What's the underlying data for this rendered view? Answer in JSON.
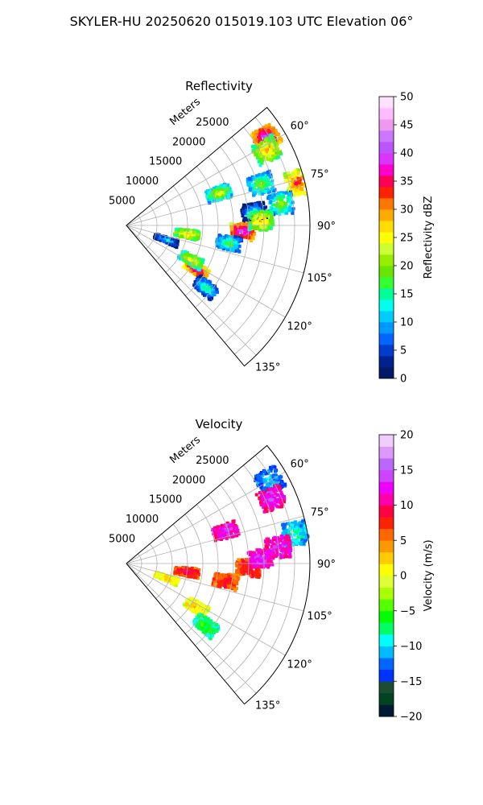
{
  "title": "SKYLER-HU  20250620  015019.103 UTC Elevation 06°",
  "chart_data": [
    {
      "type": "polar-sector",
      "title": "Reflectivity",
      "radial_label": "Meters",
      "radial_ticks": [
        5000,
        10000,
        15000,
        20000,
        25000
      ],
      "radial_max": 30000,
      "azimuth_range_deg": [
        50,
        140
      ],
      "azimuth_tick_labels": [
        "60°",
        "75°",
        "90°",
        "105°",
        "120°",
        "135°"
      ],
      "grid": true,
      "colorbar": {
        "label": "Reflectivity dBZ",
        "min": 0,
        "max": 50,
        "ticks": [
          "0",
          "5",
          "10",
          "15",
          "20",
          "25",
          "30",
          "35",
          "40",
          "45",
          "50"
        ],
        "colors": [
          "#001a66",
          "#00228f",
          "#003dcc",
          "#0066ff",
          "#0099ff",
          "#00ccff",
          "#00ffee",
          "#00ff99",
          "#33ff33",
          "#66e600",
          "#99ee00",
          "#ccff33",
          "#ffff00",
          "#ffdd00",
          "#ffaa00",
          "#ff7700",
          "#ff2200",
          "#ff0055",
          "#ff00cc",
          "#dd33ff",
          "#bb55ff",
          "#cc77ff",
          "#ee99ee",
          "#ffbbff",
          "#ffe0ff"
        ]
      },
      "echoes": [
        {
          "az": 58,
          "range_m": 27000,
          "dbz": 42
        },
        {
          "az": 62,
          "range_m": 26000,
          "dbz": 30
        },
        {
          "az": 71,
          "range_m": 16000,
          "dbz": 25
        },
        {
          "az": 73,
          "range_m": 23000,
          "dbz": 22
        },
        {
          "az": 76,
          "range_m": 29000,
          "dbz": 35
        },
        {
          "az": 82,
          "range_m": 25500,
          "dbz": 22
        },
        {
          "az": 84,
          "range_m": 21000,
          "dbz": 15
        },
        {
          "az": 93,
          "range_m": 19000,
          "dbz": 42
        },
        {
          "az": 88,
          "range_m": 22000,
          "dbz": 30
        },
        {
          "az": 100,
          "range_m": 17000,
          "dbz": 20
        },
        {
          "az": 98,
          "range_m": 10000,
          "dbz": 30
        },
        {
          "az": 110,
          "range_m": 7000,
          "dbz": 15
        },
        {
          "az": 122,
          "range_m": 13500,
          "dbz": 40
        },
        {
          "az": 118,
          "range_m": 12000,
          "dbz": 28
        },
        {
          "az": 128,
          "range_m": 16500,
          "dbz": 18
        }
      ]
    },
    {
      "type": "polar-sector",
      "title": "Velocity",
      "radial_label": "Meters",
      "radial_ticks": [
        5000,
        10000,
        15000,
        20000,
        25000
      ],
      "radial_max": 30000,
      "azimuth_range_deg": [
        50,
        140
      ],
      "azimuth_tick_labels": [
        "60°",
        "75°",
        "90°",
        "105°",
        "120°",
        "135°"
      ],
      "grid": true,
      "colorbar": {
        "label": "Velocity (m/s)",
        "min": -20,
        "max": 20,
        "ticks": [
          "−20",
          "−15",
          "−10",
          "−5",
          "0",
          "5",
          "10",
          "15",
          "20"
        ],
        "colors": [
          "#001a33",
          "#004422",
          "#1a4d33",
          "#0033ff",
          "#0066ff",
          "#00bbff",
          "#00ffff",
          "#00ff66",
          "#00ff00",
          "#55ff00",
          "#aaff00",
          "#ddff33",
          "#ffff00",
          "#ffcc00",
          "#ff9900",
          "#ff6600",
          "#ff2200",
          "#ff0044",
          "#ff00aa",
          "#ee00ff",
          "#cc44ff",
          "#bb66ff",
          "#dd99ff",
          "#f2ccff"
        ]
      },
      "echoes": [
        {
          "az": 60,
          "range_m": 27000,
          "v": -10
        },
        {
          "az": 66,
          "range_m": 26000,
          "v": 14
        },
        {
          "az": 72,
          "range_m": 17000,
          "v": 14
        },
        {
          "az": 80,
          "range_m": 28000,
          "v": -8
        },
        {
          "az": 84,
          "range_m": 25000,
          "v": 14
        },
        {
          "az": 92,
          "range_m": 20000,
          "v": 10
        },
        {
          "az": 88,
          "range_m": 22000,
          "v": 14
        },
        {
          "az": 98,
          "range_m": 10000,
          "v": 10
        },
        {
          "az": 100,
          "range_m": 16500,
          "v": 9
        },
        {
          "az": 110,
          "range_m": 7000,
          "v": 3
        },
        {
          "az": 122,
          "range_m": 13500,
          "v": 3
        },
        {
          "az": 128,
          "range_m": 16500,
          "v": -5
        }
      ]
    }
  ]
}
